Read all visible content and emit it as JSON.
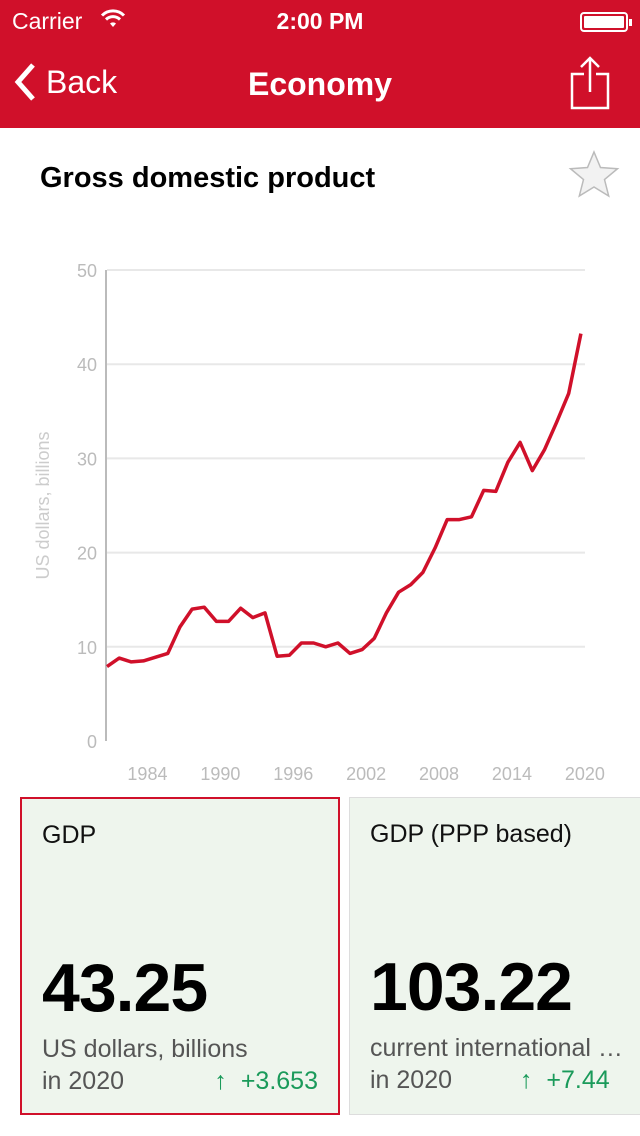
{
  "status": {
    "carrier": "Carrier",
    "time": "2:00 PM"
  },
  "nav": {
    "back": "Back",
    "title": "Economy"
  },
  "page": {
    "title": "Gross domestic product"
  },
  "chart_data": {
    "type": "line",
    "title": "Gross domestic product",
    "ylabel": "US dollars, billions",
    "xlabel": "",
    "ylim": [
      0,
      50
    ],
    "yticks": [
      0,
      10,
      20,
      30,
      40,
      50
    ],
    "xticks": [
      1984,
      1990,
      1996,
      2002,
      2008,
      2014,
      2020
    ],
    "grid": true,
    "series": [
      {
        "name": "GDP",
        "color": "#d0102a",
        "x": [
          1981,
          1982,
          1983,
          1984,
          1985,
          1986,
          1987,
          1988,
          1989,
          1990,
          1991,
          1992,
          1993,
          1994,
          1995,
          1996,
          1997,
          1998,
          1999,
          2000,
          2001,
          2002,
          2003,
          2004,
          2005,
          2006,
          2007,
          2008,
          2009,
          2010,
          2011,
          2012,
          2013,
          2014,
          2015,
          2016,
          2017,
          2018,
          2019,
          2020
        ],
        "y": [
          7.9,
          8.8,
          8.4,
          8.5,
          8.9,
          9.3,
          12.1,
          14.0,
          14.2,
          12.7,
          12.7,
          14.1,
          13.1,
          13.6,
          9.0,
          9.1,
          10.4,
          10.4,
          10.0,
          10.4,
          9.3,
          9.7,
          10.9,
          13.6,
          15.8,
          16.6,
          17.9,
          20.5,
          23.5,
          23.5,
          23.8,
          26.6,
          26.5,
          29.6,
          31.7,
          28.7,
          30.9,
          33.8,
          36.9,
          43.25
        ]
      }
    ]
  },
  "cards": [
    {
      "label": "GDP",
      "value": "43.25",
      "unit": "US dollars, billions",
      "year": "in 2020",
      "change": "+3.653"
    },
    {
      "label": "GDP (PPP based)",
      "value": "103.22",
      "unit": "current international dollars, billions",
      "year": "in 2020",
      "change": "+7.44"
    }
  ]
}
